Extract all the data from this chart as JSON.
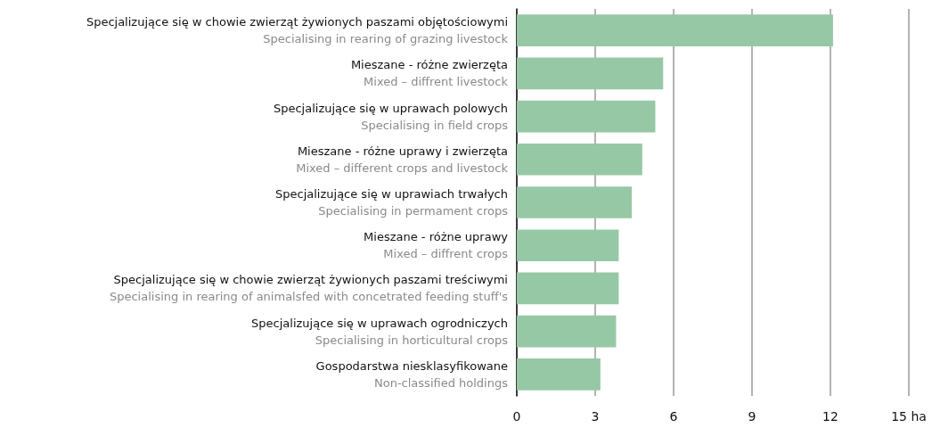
{
  "chart_data": {
    "type": "bar",
    "orientation": "horizontal",
    "categories": [
      "Specjalizujące się w chowie zwierząt żywionych paszami objętościowymi\nSpecialising in rearing of grazing livestock",
      "Mieszane - różne zwierzęta\nMixed – diffrent livestock",
      "Specjalizujące się w uprawach polowych\nSpecialising in field crops",
      "Mieszane - różne uprawy i zwierzęta\nMixed – different crops and livestock",
      "Specjalizujące się w uprawiach trwałych\nSpecialising in permament crops",
      "Mieszane - różne uprawy\nMixed – diffrent crops",
      "Specjalizujące się w chowie zwierząt żywionych paszami treściwymi\nSpecialising in rearing of animalsfed with concetrated feeding stuff's",
      "Specjalizujące się w uprawach ogrodniczych\nSpecialising in horticultural crops",
      "Gospodarstwa niesklasyfikowane\nNon-classified holdings"
    ],
    "values": [
      12.1,
      5.6,
      5.3,
      4.8,
      4.4,
      3.9,
      3.9,
      3.8,
      3.2
    ],
    "color": "#97c8a6",
    "xlim": [
      0,
      15
    ],
    "xticks": [
      0,
      3,
      6,
      9,
      12,
      {
        "value": 15,
        "label": "15 ha"
      }
    ],
    "grid": "x"
  }
}
